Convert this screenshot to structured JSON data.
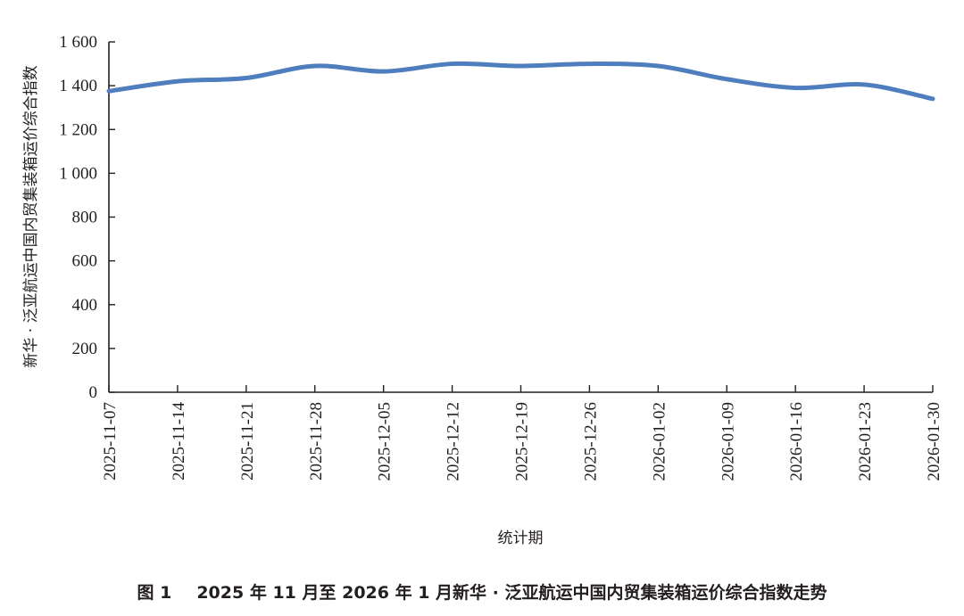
{
  "chart_data": {
    "type": "line",
    "title": "",
    "xlabel": "统计期",
    "ylabel": "新华 · 泛亚航运中国内贸集装箱运价综合指数",
    "ylim": [
      0,
      1600
    ],
    "yticks": [
      0,
      200,
      400,
      600,
      800,
      1000,
      1200,
      1400,
      1600
    ],
    "ytick_labels": [
      "0",
      "200",
      "400",
      "600",
      "800",
      "1 000",
      "1 200",
      "1 400",
      "1 600"
    ],
    "grid": false,
    "legend": "none",
    "x": [
      "2025-11-07",
      "2025-11-14",
      "2025-11-21",
      "2025-11-28",
      "2025-12-05",
      "2025-12-12",
      "2025-12-19",
      "2025-12-26",
      "2026-01-02",
      "2026-01-09",
      "2026-01-16",
      "2026-01-23",
      "2026-01-30"
    ],
    "series": [
      {
        "name": "",
        "color": "#4f7ebf",
        "values": [
          1375,
          1420,
          1435,
          1490,
          1465,
          1500,
          1490,
          1500,
          1490,
          1430,
          1390,
          1405,
          1340
        ]
      }
    ]
  },
  "caption": {
    "figure_number": "图 1",
    "text": "2025 年 11 月至 2026 年 1 月新华 · 泛亚航运中国内贸集装箱运价综合指数走势"
  }
}
